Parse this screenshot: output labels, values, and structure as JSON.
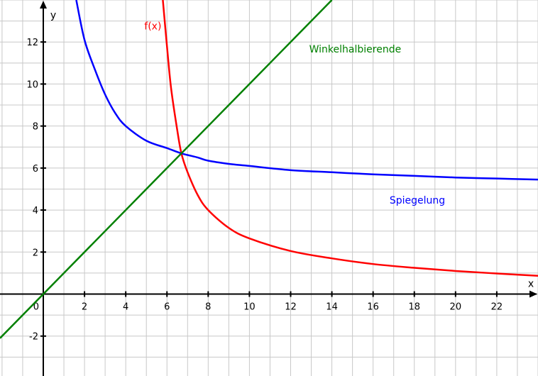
{
  "chart_data": {
    "type": "line",
    "xlabel": "x",
    "ylabel": "y",
    "xlim": [
      -2.1,
      24.0
    ],
    "ylim": [
      -3.9,
      14.0
    ],
    "x_ticks": [
      2,
      4,
      6,
      8,
      10,
      12,
      14,
      16,
      18,
      20,
      22
    ],
    "y_ticks": [
      -2,
      2,
      4,
      6,
      8,
      10,
      12
    ],
    "origin_label": "0",
    "grid": true,
    "grid_minor_step": 1,
    "series": [
      {
        "name": "f(x)",
        "color": "#ff0000",
        "x": [
          5.8,
          6.0,
          6.2,
          6.5,
          6.7,
          7.0,
          7.5,
          8.0,
          9.0,
          10.0,
          12.0,
          14.0,
          16.0,
          18.0,
          20.0,
          22.0,
          24.0
        ],
        "y": [
          14.0,
          11.8,
          9.8,
          7.8,
          6.7,
          5.8,
          4.7,
          4.0,
          3.15,
          2.65,
          2.05,
          1.7,
          1.43,
          1.25,
          1.1,
          0.98,
          0.87
        ]
      },
      {
        "name": "Spiegelung",
        "color": "#0000ff",
        "x": [
          1.6,
          2.0,
          2.5,
          3.0,
          3.5,
          4.0,
          5.0,
          6.0,
          6.7,
          7.5,
          8.0,
          9.0,
          10.0,
          12.0,
          14.0,
          16.0,
          18.0,
          20.0,
          22.0,
          24.0
        ],
        "y": [
          14.0,
          12.1,
          10.7,
          9.5,
          8.6,
          8.0,
          7.3,
          6.95,
          6.7,
          6.5,
          6.35,
          6.2,
          6.1,
          5.9,
          5.8,
          5.7,
          5.63,
          5.55,
          5.5,
          5.45
        ]
      },
      {
        "name": "Winkelhalbierende",
        "color": "#008000",
        "x": [
          -2.1,
          14.0
        ],
        "y": [
          -2.1,
          14.0
        ]
      }
    ],
    "annotations": [
      {
        "text": "f(x)",
        "x": 4.9,
        "y": 12.6,
        "color": "#ff0000"
      },
      {
        "text": "Winkelhalbierende",
        "x": 12.9,
        "y": 11.5,
        "color": "#008000"
      },
      {
        "text": "Spiegelung",
        "x": 16.8,
        "y": 4.3,
        "color": "#0000ff"
      }
    ]
  }
}
